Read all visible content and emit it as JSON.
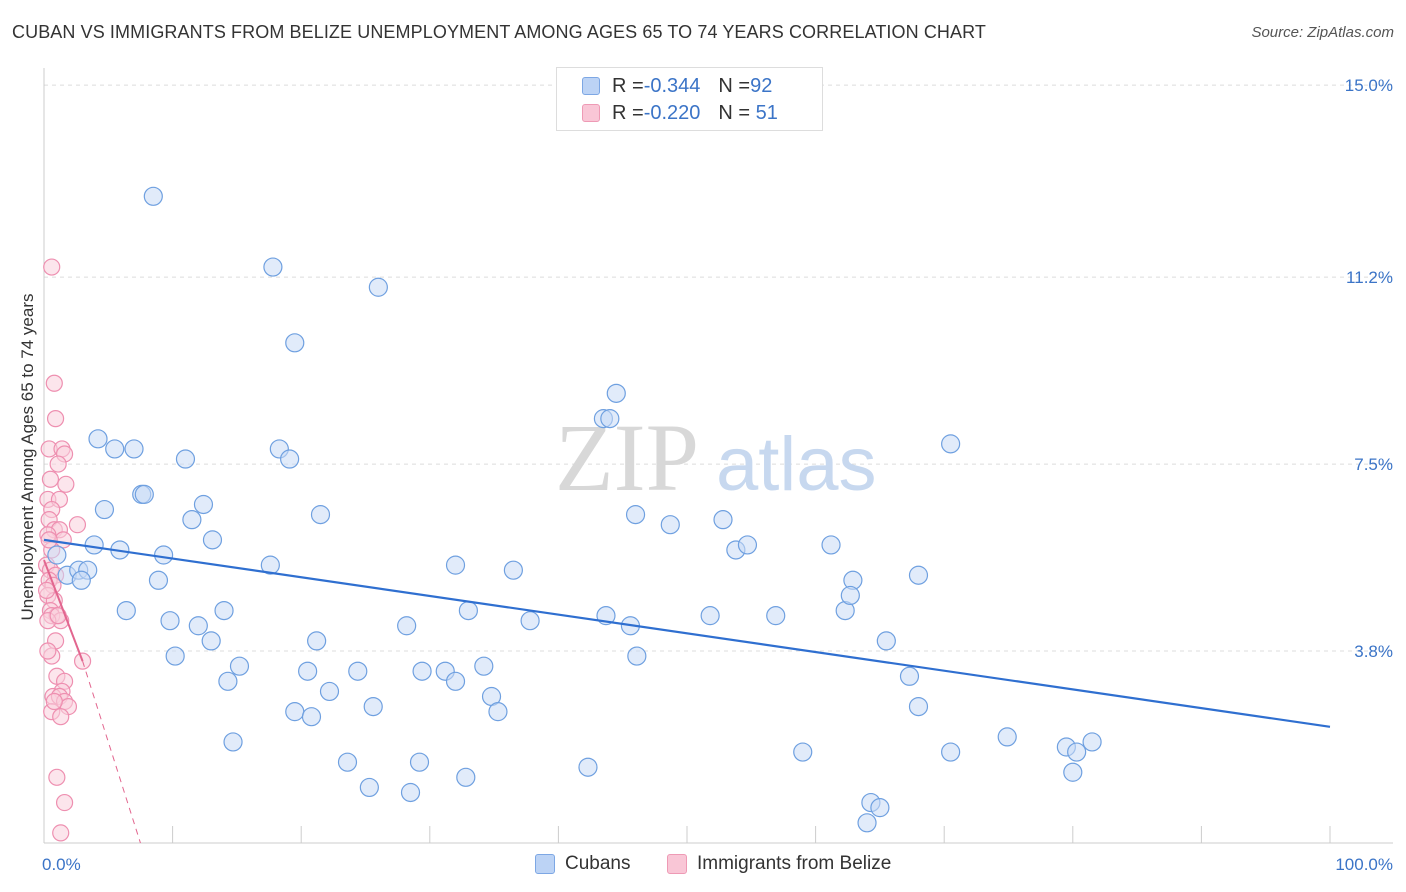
{
  "title": "CUBAN VS IMMIGRANTS FROM BELIZE UNEMPLOYMENT AMONG AGES 65 TO 74 YEARS CORRELATION CHART",
  "source": "Source: ZipAtlas.com",
  "watermark": {
    "zip": "ZIP",
    "atlas": "atlas"
  },
  "legend": {
    "rows": [
      {
        "r_label": "R = ",
        "r_value": "-0.344",
        "n_label": "N = ",
        "n_value": "92"
      },
      {
        "r_label": "R = ",
        "r_value": "-0.220",
        "n_label": "N = ",
        "n_value": " 51"
      }
    ]
  },
  "bottom_legend": {
    "cubans": "Cubans",
    "belize": "Immigrants from Belize"
  },
  "chart_data": {
    "type": "scatter",
    "title": "CUBAN VS IMMIGRANTS FROM BELIZE UNEMPLOYMENT AMONG AGES 65 TO 74 YEARS CORRELATION CHART",
    "xlabel": "",
    "ylabel": "Unemployment Among Ages 65 to 74 years",
    "xlim": [
      0,
      100
    ],
    "ylim": [
      0,
      15.3
    ],
    "x_tick_labels": [
      "0.0%",
      "100.0%"
    ],
    "y_ticks": [
      3.8,
      7.5,
      11.2,
      15.0
    ],
    "y_tick_labels": [
      "3.8%",
      "7.5%",
      "11.2%",
      "15.0%"
    ],
    "colors": {
      "cubans": "#6fa0e0",
      "cubans_fill": "#c9dbf5",
      "cubans_line": "#2f6fd0",
      "belize": "#ee8fb0",
      "belize_fill": "#f9cfdd",
      "belize_line": "#e2668f",
      "grid": "#dcdcdc",
      "tick_label": "#3b74c7"
    },
    "series": [
      {
        "name": "Cubans",
        "trend": {
          "x": [
            0,
            100
          ],
          "y": [
            6.0,
            2.3
          ]
        },
        "points": [
          [
            8.5,
            12.8
          ],
          [
            17.8,
            11.4
          ],
          [
            26.0,
            11.0
          ],
          [
            19.5,
            9.9
          ],
          [
            44.5,
            8.9
          ],
          [
            43.5,
            8.4
          ],
          [
            44.0,
            8.4
          ],
          [
            70.5,
            7.9
          ],
          [
            4.2,
            8.0
          ],
          [
            5.5,
            7.8
          ],
          [
            7.0,
            7.8
          ],
          [
            18.3,
            7.8
          ],
          [
            11.0,
            7.6
          ],
          [
            19.1,
            7.6
          ],
          [
            7.6,
            6.9
          ],
          [
            7.8,
            6.9
          ],
          [
            12.4,
            6.7
          ],
          [
            4.7,
            6.6
          ],
          [
            11.5,
            6.4
          ],
          [
            21.5,
            6.5
          ],
          [
            46.0,
            6.5
          ],
          [
            48.7,
            6.3
          ],
          [
            52.8,
            6.4
          ],
          [
            13.1,
            6.0
          ],
          [
            3.9,
            5.9
          ],
          [
            5.9,
            5.8
          ],
          [
            9.3,
            5.7
          ],
          [
            53.8,
            5.8
          ],
          [
            54.7,
            5.9
          ],
          [
            61.2,
            5.9
          ],
          [
            1.0,
            5.7
          ],
          [
            17.6,
            5.5
          ],
          [
            32.0,
            5.5
          ],
          [
            36.5,
            5.4
          ],
          [
            1.8,
            5.3
          ],
          [
            2.7,
            5.4
          ],
          [
            3.4,
            5.4
          ],
          [
            2.9,
            5.2
          ],
          [
            8.9,
            5.2
          ],
          [
            62.9,
            5.2
          ],
          [
            68.0,
            5.3
          ],
          [
            6.4,
            4.6
          ],
          [
            14.0,
            4.6
          ],
          [
            33.0,
            4.6
          ],
          [
            43.7,
            4.5
          ],
          [
            51.8,
            4.5
          ],
          [
            56.9,
            4.5
          ],
          [
            62.3,
            4.6
          ],
          [
            62.7,
            4.9
          ],
          [
            9.8,
            4.4
          ],
          [
            12.0,
            4.3
          ],
          [
            28.2,
            4.3
          ],
          [
            37.8,
            4.4
          ],
          [
            45.6,
            4.3
          ],
          [
            21.2,
            4.0
          ],
          [
            13.0,
            4.0
          ],
          [
            65.5,
            4.0
          ],
          [
            10.2,
            3.7
          ],
          [
            46.1,
            3.7
          ],
          [
            15.2,
            3.5
          ],
          [
            34.2,
            3.5
          ],
          [
            20.5,
            3.4
          ],
          [
            24.4,
            3.4
          ],
          [
            29.4,
            3.4
          ],
          [
            31.2,
            3.4
          ],
          [
            67.3,
            3.3
          ],
          [
            14.3,
            3.2
          ],
          [
            32.0,
            3.2
          ],
          [
            22.2,
            3.0
          ],
          [
            34.8,
            2.9
          ],
          [
            25.6,
            2.7
          ],
          [
            19.5,
            2.6
          ],
          [
            20.8,
            2.5
          ],
          [
            35.3,
            2.6
          ],
          [
            68.0,
            2.7
          ],
          [
            14.7,
            2.0
          ],
          [
            74.9,
            2.1
          ],
          [
            79.5,
            1.9
          ],
          [
            81.5,
            2.0
          ],
          [
            59.0,
            1.8
          ],
          [
            70.5,
            1.8
          ],
          [
            23.6,
            1.6
          ],
          [
            29.2,
            1.6
          ],
          [
            42.3,
            1.5
          ],
          [
            32.8,
            1.3
          ],
          [
            80.0,
            1.4
          ],
          [
            25.3,
            1.1
          ],
          [
            28.5,
            1.0
          ],
          [
            64.3,
            0.8
          ],
          [
            64.0,
            0.4
          ],
          [
            65.0,
            0.7
          ],
          [
            80.3,
            1.8
          ]
        ]
      },
      {
        "name": "Immigrants from Belize",
        "trend": {
          "x": [
            0,
            3.0
          ],
          "y": [
            5.6,
            3.6
          ]
        },
        "trend_extended": {
          "x": [
            3.0,
            7.5
          ],
          "y": [
            3.6,
            0.0
          ]
        },
        "points": [
          [
            0.6,
            11.4
          ],
          [
            0.8,
            9.1
          ],
          [
            0.9,
            8.4
          ],
          [
            0.4,
            7.8
          ],
          [
            1.4,
            7.8
          ],
          [
            1.6,
            7.7
          ],
          [
            1.1,
            7.5
          ],
          [
            0.5,
            7.2
          ],
          [
            1.7,
            7.1
          ],
          [
            0.3,
            6.8
          ],
          [
            1.2,
            6.8
          ],
          [
            0.6,
            6.6
          ],
          [
            0.4,
            6.4
          ],
          [
            2.6,
            6.3
          ],
          [
            0.8,
            6.2
          ],
          [
            1.2,
            6.2
          ],
          [
            0.3,
            6.1
          ],
          [
            1.5,
            6.0
          ],
          [
            0.6,
            5.8
          ],
          [
            0.2,
            5.5
          ],
          [
            0.5,
            5.4
          ],
          [
            0.9,
            5.3
          ],
          [
            0.4,
            5.2
          ],
          [
            0.7,
            5.1
          ],
          [
            0.3,
            4.9
          ],
          [
            0.8,
            4.8
          ],
          [
            0.5,
            4.6
          ],
          [
            1.0,
            4.5
          ],
          [
            0.6,
            4.5
          ],
          [
            1.3,
            4.4
          ],
          [
            0.3,
            4.4
          ],
          [
            0.9,
            4.0
          ],
          [
            0.6,
            3.7
          ],
          [
            3.0,
            3.6
          ],
          [
            1.0,
            3.3
          ],
          [
            1.6,
            3.2
          ],
          [
            1.4,
            3.0
          ],
          [
            0.7,
            2.9
          ],
          [
            1.2,
            2.9
          ],
          [
            1.6,
            2.8
          ],
          [
            1.9,
            2.7
          ],
          [
            0.6,
            2.6
          ],
          [
            1.3,
            2.5
          ],
          [
            1.0,
            1.3
          ],
          [
            1.6,
            0.8
          ],
          [
            1.3,
            0.2
          ],
          [
            0.4,
            6.0
          ],
          [
            0.2,
            5.0
          ],
          [
            1.1,
            4.5
          ],
          [
            0.8,
            2.8
          ],
          [
            0.3,
            3.8
          ]
        ]
      }
    ]
  }
}
